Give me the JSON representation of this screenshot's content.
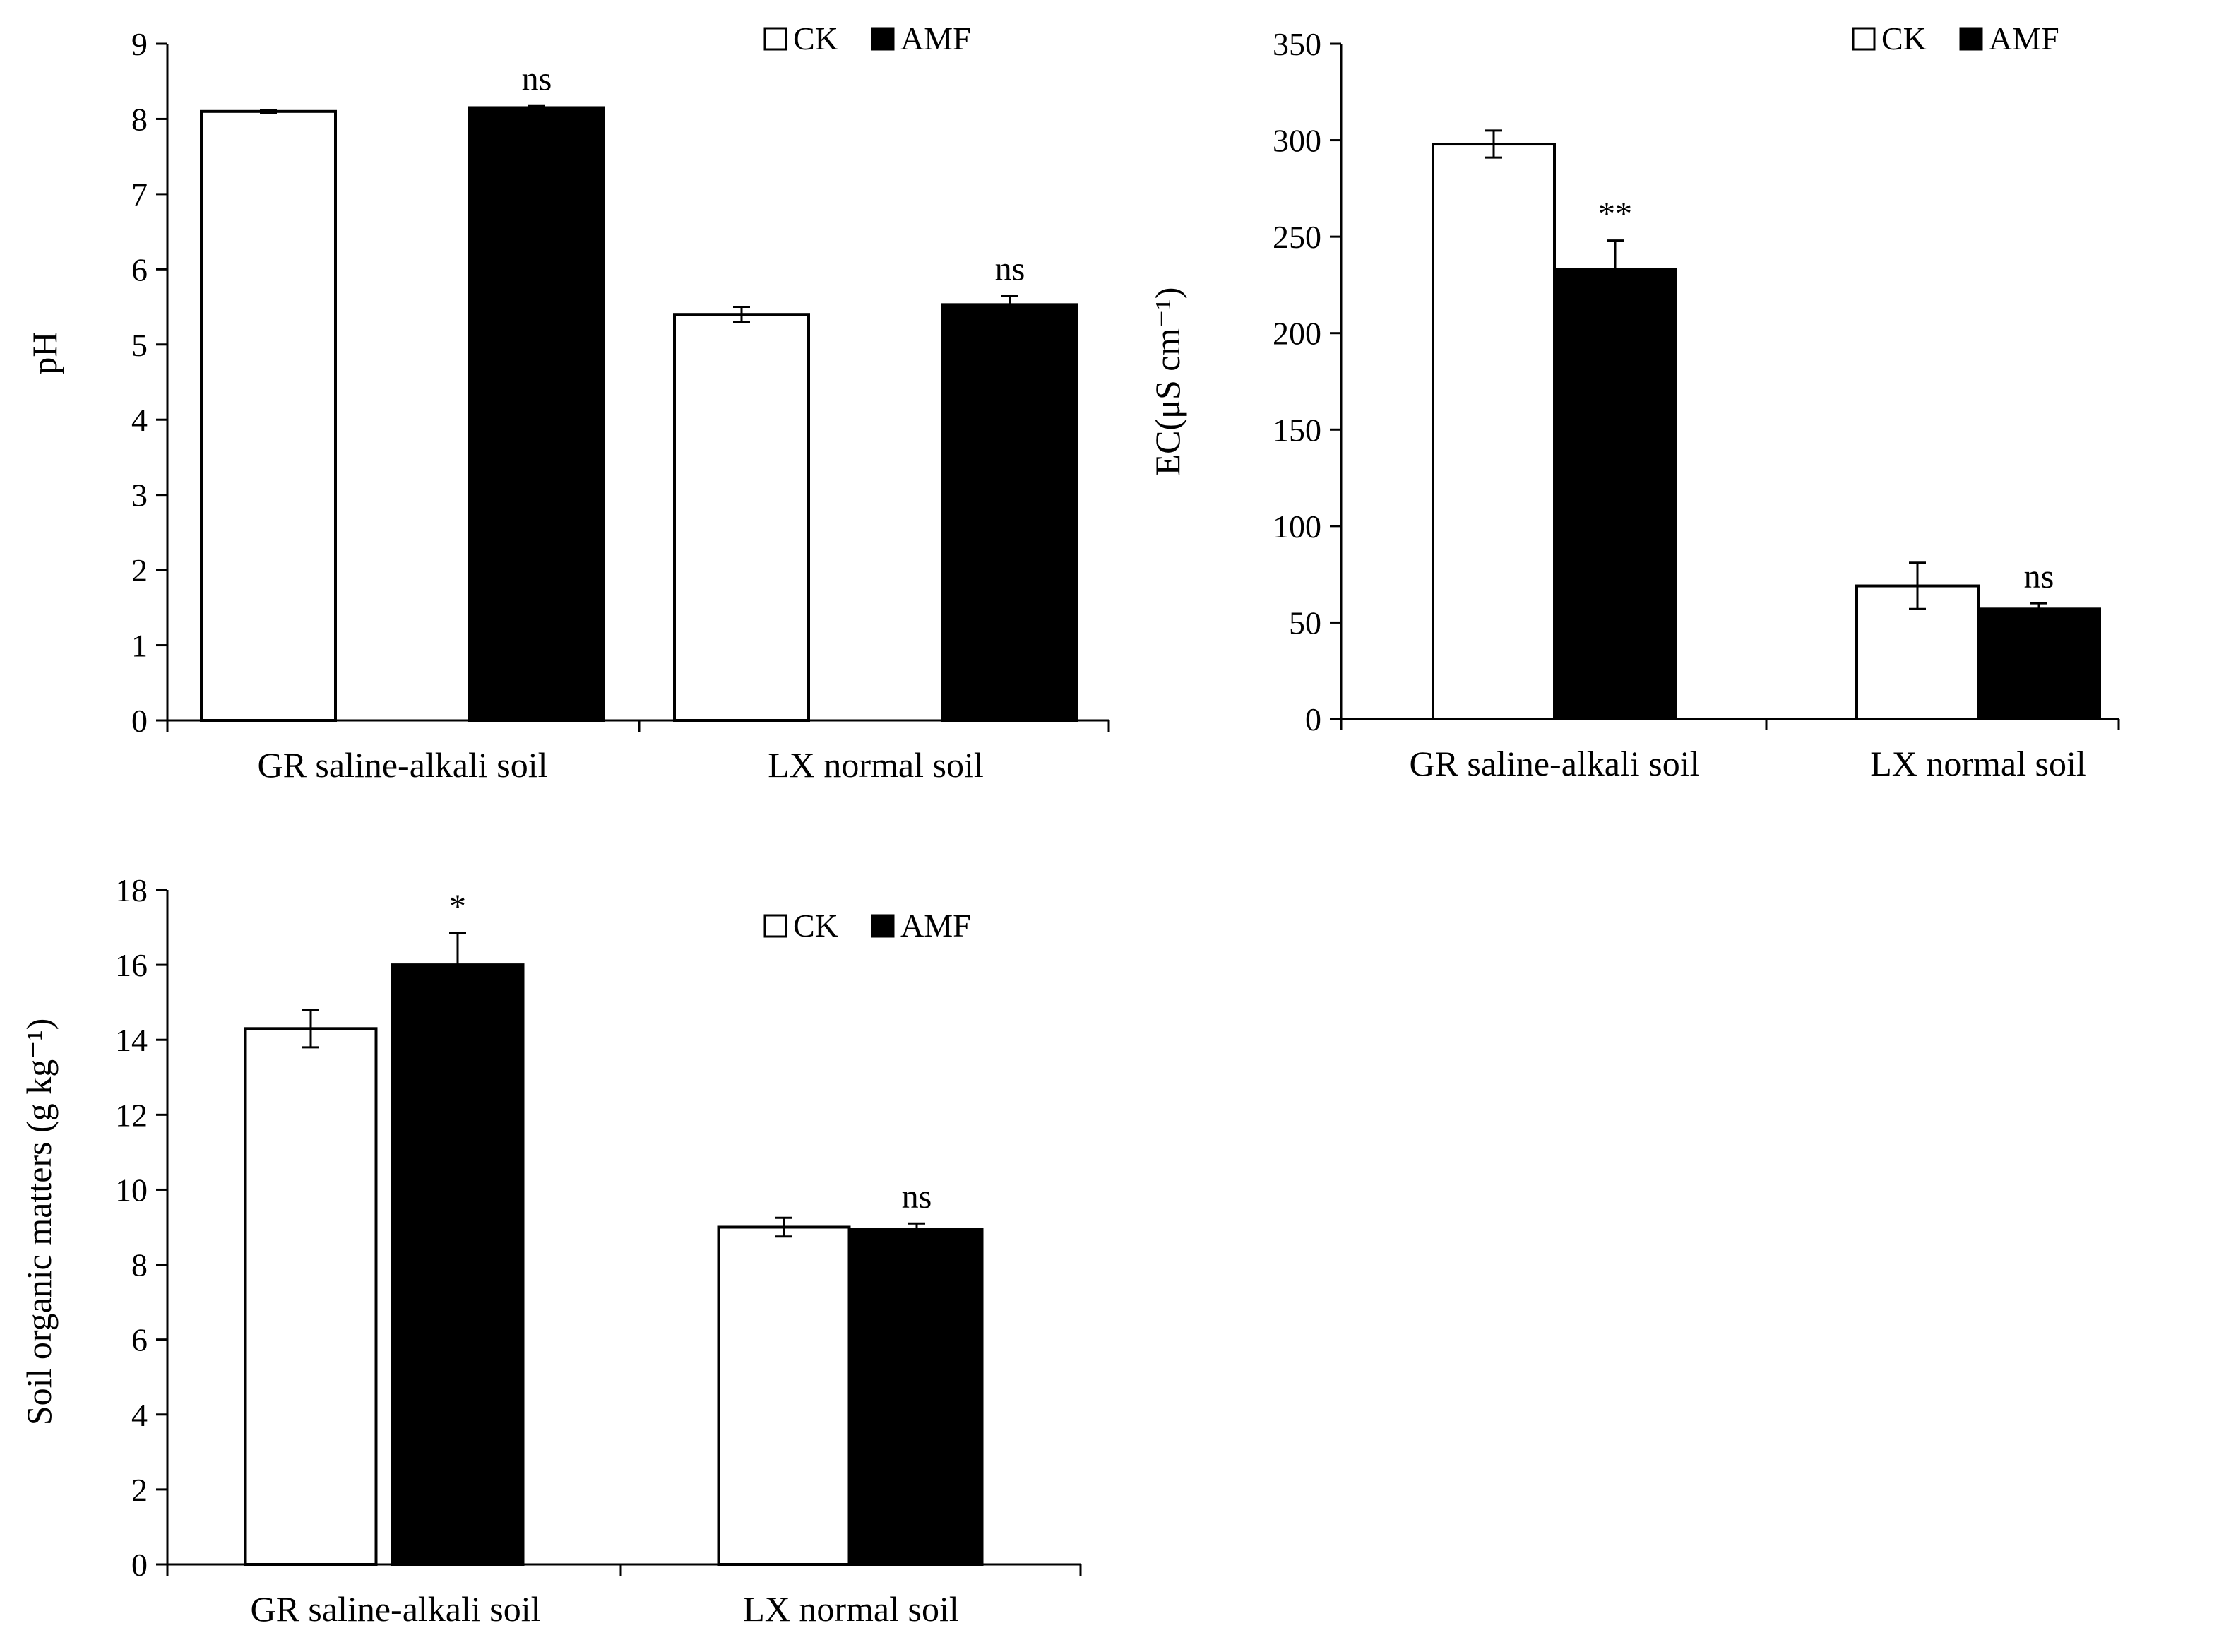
{
  "chart_data": [
    {
      "type": "bar",
      "title": "",
      "xlabel": "",
      "ylabel": "pH",
      "ylim": [
        0,
        9
      ],
      "yticks": [
        0,
        1,
        2,
        3,
        4,
        5,
        6,
        7,
        8,
        9
      ],
      "categories": [
        "GR saline-alkali soil",
        "LX normal soil"
      ],
      "series": [
        {
          "name": "CK",
          "values": [
            8.1,
            5.4
          ],
          "errors": [
            0.02,
            0.1
          ],
          "color": "#ffffff"
        },
        {
          "name": "AMF",
          "values": [
            8.15,
            5.53
          ],
          "errors": [
            0.03,
            0.12
          ],
          "color": "#000000"
        }
      ],
      "annotations": [
        "ns",
        "ns"
      ],
      "legend_position": "top-right"
    },
    {
      "type": "bar",
      "title": "",
      "xlabel": "",
      "ylabel": "EC(μS cm⁻¹)",
      "ylim": [
        0,
        350
      ],
      "yticks": [
        0,
        50,
        100,
        150,
        200,
        250,
        300,
        350
      ],
      "categories": [
        "GR saline-alkali soil",
        "LX normal soil"
      ],
      "series": [
        {
          "name": "CK",
          "values": [
            298,
            69
          ],
          "errors": [
            7,
            12
          ],
          "color": "#ffffff"
        },
        {
          "name": "AMF",
          "values": [
            233,
            57
          ],
          "errors": [
            15,
            3
          ],
          "color": "#000000"
        }
      ],
      "annotations": [
        "**",
        "ns"
      ],
      "legend_position": "top-right"
    },
    {
      "type": "bar",
      "title": "",
      "xlabel": "",
      "ylabel": "Soil organic matters (g kg⁻¹)",
      "ylim": [
        0,
        18
      ],
      "yticks": [
        0,
        2,
        4,
        6,
        8,
        10,
        12,
        14,
        16,
        18
      ],
      "categories": [
        "GR saline-alkali soil",
        "LX normal soil"
      ],
      "series": [
        {
          "name": "CK",
          "values": [
            14.3,
            9.0
          ],
          "errors": [
            0.5,
            0.25
          ],
          "color": "#ffffff"
        },
        {
          "name": "AMF",
          "values": [
            16.0,
            8.95
          ],
          "errors": [
            0.85,
            0.15
          ],
          "color": "#000000"
        }
      ],
      "annotations": [
        "*",
        "ns"
      ],
      "legend_position": "top-right"
    }
  ]
}
